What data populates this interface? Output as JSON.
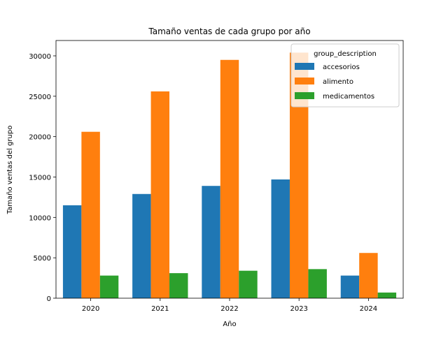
{
  "chart_data": {
    "type": "bar",
    "title": "Tamaño ventas de cada grupo por año",
    "xlabel": "Año",
    "ylabel": "Tamaño ventas del grupo",
    "categories": [
      "2020",
      "2021",
      "2022",
      "2023",
      "2024"
    ],
    "series": [
      {
        "name": "accesorios",
        "color": "#1f77b4",
        "values": [
          11500,
          12900,
          13900,
          14700,
          2800
        ]
      },
      {
        "name": "alimento",
        "color": "#ff7f0e",
        "values": [
          20600,
          25600,
          29500,
          30400,
          5600
        ]
      },
      {
        "name": "medicamentos",
        "color": "#2ca02c",
        "values": [
          2800,
          3100,
          3400,
          3600,
          700
        ]
      }
    ],
    "ylim": [
      0,
      31900
    ],
    "yticks": [
      0,
      5000,
      10000,
      15000,
      20000,
      25000,
      30000
    ],
    "grid": false,
    "legend": {
      "title": "group_description",
      "placement": "top-right"
    }
  }
}
